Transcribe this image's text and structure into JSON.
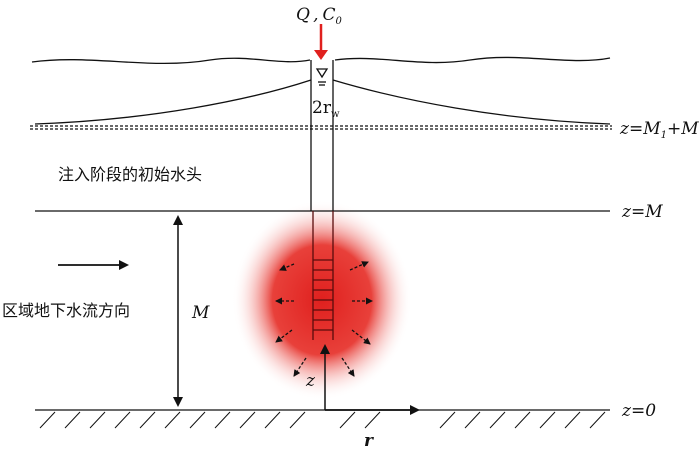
{
  "labels": {
    "source": {
      "q": "Q",
      "comma": ",",
      "c": "C",
      "c_sub": "0"
    },
    "well_diameter": {
      "main": "2r",
      "sub": "w"
    },
    "top_boundary": {
      "main": "z=M",
      "sub": "1",
      "tail": "+M"
    },
    "initial_head": "注入阶段的初始水头",
    "aquifer_top": "z=M",
    "flow_direction": "区域地下水流方向",
    "thickness": "M",
    "z_axis": "z",
    "bottom": "z=0",
    "r_axis": "r"
  }
}
